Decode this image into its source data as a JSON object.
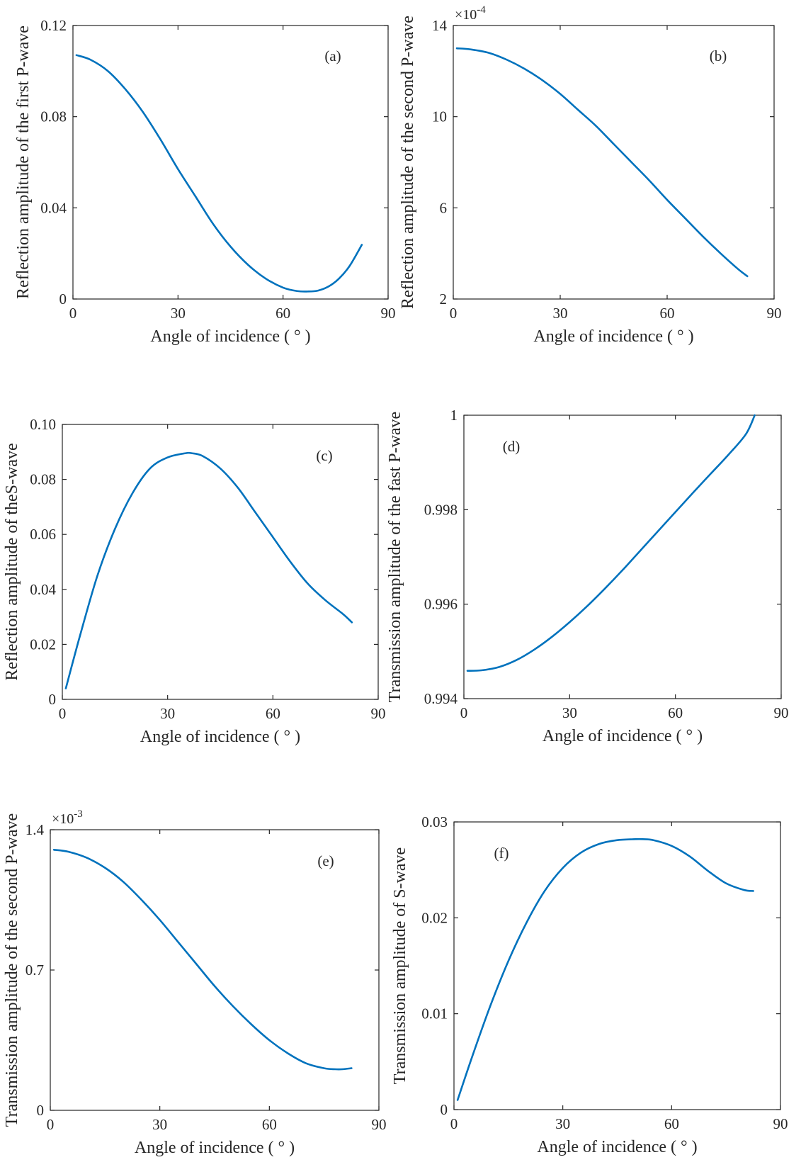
{
  "chart_data": [
    {
      "id": "a",
      "type": "line",
      "panel_label": "(a)",
      "xlabel": "Angle of incidence ( ° )",
      "ylabel": "Reflection amplitude of the first P-wave",
      "xlim": [
        0,
        90
      ],
      "ylim": [
        0,
        0.12
      ],
      "xticks": [
        0,
        30,
        60,
        90
      ],
      "xtick_labels": [
        "0",
        "30",
        "60",
        "90"
      ],
      "yticks": [
        0,
        0.04,
        0.08,
        0.12
      ],
      "ytick_labels": [
        "0",
        "0.04",
        "0.08",
        "0.12"
      ],
      "exponent_label": "",
      "grid": false,
      "series": [
        {
          "color": "#0072bd",
          "x": [
            1,
            5,
            10,
            15,
            20,
            25,
            30,
            35,
            40,
            45,
            50,
            55,
            60,
            64,
            67,
            70,
            73,
            76,
            79,
            82.5
          ],
          "y": [
            0.107,
            0.105,
            0.1,
            0.092,
            0.082,
            0.07,
            0.057,
            0.045,
            0.033,
            0.023,
            0.015,
            0.009,
            0.005,
            0.0035,
            0.0033,
            0.0037,
            0.0055,
            0.009,
            0.0145,
            0.0238
          ]
        }
      ]
    },
    {
      "id": "b",
      "type": "line",
      "panel_label": "(b)",
      "xlabel": "Angle of incidence ( ° )",
      "ylabel": "Reflection amplitude of the second  P-wave",
      "xlim": [
        0,
        90
      ],
      "ylim": [
        2,
        14
      ],
      "xticks": [
        0,
        30,
        60,
        90
      ],
      "xtick_labels": [
        "0",
        "30",
        "60",
        "90"
      ],
      "yticks": [
        2,
        6,
        10,
        14
      ],
      "ytick_labels": [
        "2",
        "6",
        "10",
        "14"
      ],
      "exponent_label": "×10",
      "exponent_power": "-4",
      "grid": false,
      "series": [
        {
          "color": "#0072bd",
          "x": [
            1,
            5,
            10,
            15,
            20,
            25,
            30,
            35,
            40,
            45,
            50,
            55,
            60,
            65,
            70,
            75,
            80,
            82.5
          ],
          "y": [
            13.0,
            12.95,
            12.8,
            12.5,
            12.1,
            11.6,
            11.0,
            10.3,
            9.6,
            8.8,
            8.0,
            7.2,
            6.35,
            5.55,
            4.75,
            4.0,
            3.3,
            3.0
          ]
        }
      ]
    },
    {
      "id": "c",
      "type": "line",
      "panel_label": "(c)",
      "xlabel": "Angle of incidence ( ° )",
      "ylabel": "Reflection amplitude of theS-wave",
      "xlim": [
        0,
        90
      ],
      "ylim": [
        0,
        0.1
      ],
      "xticks": [
        0,
        30,
        60,
        90
      ],
      "xtick_labels": [
        "0",
        "30",
        "60",
        "90"
      ],
      "yticks": [
        0,
        0.02,
        0.04,
        0.06,
        0.08,
        0.1
      ],
      "ytick_labels": [
        "0",
        "0.02",
        "0.04",
        "0.06",
        "0.08",
        "0.10"
      ],
      "exponent_label": "",
      "grid": false,
      "series": [
        {
          "color": "#0072bd",
          "x": [
            1,
            5,
            10,
            15,
            20,
            25,
            30,
            35,
            37,
            40,
            45,
            50,
            55,
            60,
            65,
            70,
            75,
            80,
            82.5
          ],
          "y": [
            0.004,
            0.023,
            0.045,
            0.062,
            0.075,
            0.084,
            0.088,
            0.0895,
            0.0895,
            0.0885,
            0.084,
            0.077,
            0.068,
            0.059,
            0.05,
            0.042,
            0.036,
            0.031,
            0.028
          ]
        }
      ]
    },
    {
      "id": "d",
      "type": "line",
      "panel_label": "(d)",
      "xlabel": "Angle of incidence ( ° )",
      "ylabel": "Transmission amplitude of the fast  P-wave",
      "xlim": [
        0,
        90
      ],
      "ylim": [
        0.994,
        1.0
      ],
      "xticks": [
        0,
        30,
        60,
        90
      ],
      "xtick_labels": [
        "0",
        "30",
        "60",
        "90"
      ],
      "yticks": [
        0.994,
        0.996,
        0.998,
        1.0
      ],
      "ytick_labels": [
        "0.994",
        "0.996",
        "0.998",
        "1"
      ],
      "exponent_label": "",
      "grid": false,
      "series": [
        {
          "color": "#0072bd",
          "x": [
            1,
            5,
            10,
            15,
            20,
            25,
            30,
            35,
            40,
            45,
            50,
            55,
            60,
            65,
            70,
            75,
            80,
            82.5
          ],
          "y": [
            0.99459,
            0.9946,
            0.99467,
            0.99482,
            0.99504,
            0.99531,
            0.99562,
            0.99596,
            0.99633,
            0.99672,
            0.99713,
            0.99754,
            0.99795,
            0.99836,
            0.99876,
            0.99916,
            0.9996,
            1.0
          ]
        }
      ]
    },
    {
      "id": "e",
      "type": "line",
      "panel_label": "(e)",
      "xlabel": "Angle of incidence ( ° )",
      "ylabel": "Transmission amplitude of the second  P-wave",
      "xlim": [
        0,
        90
      ],
      "ylim": [
        0,
        1.4
      ],
      "xticks": [
        0,
        30,
        60,
        90
      ],
      "xtick_labels": [
        "0",
        "30",
        "60",
        "90"
      ],
      "yticks": [
        0,
        0.7,
        1.4
      ],
      "ytick_labels": [
        "0",
        "0.7",
        "1.4"
      ],
      "exponent_label": "×10",
      "exponent_power": "-3",
      "grid": false,
      "series": [
        {
          "color": "#0072bd",
          "x": [
            1,
            5,
            10,
            15,
            20,
            25,
            30,
            35,
            40,
            45,
            50,
            55,
            60,
            65,
            70,
            75,
            78,
            80,
            82.5
          ],
          "y": [
            1.3,
            1.29,
            1.26,
            1.21,
            1.14,
            1.05,
            0.95,
            0.84,
            0.73,
            0.62,
            0.52,
            0.43,
            0.35,
            0.285,
            0.235,
            0.21,
            0.205,
            0.205,
            0.21
          ]
        }
      ]
    },
    {
      "id": "f",
      "type": "line",
      "panel_label": "(f)",
      "xlabel": "Angle of incidence ( ° )",
      "ylabel": "Transmission amplitude of S-wave",
      "xlim": [
        0,
        90
      ],
      "ylim": [
        0,
        0.03
      ],
      "xticks": [
        0,
        30,
        60,
        90
      ],
      "xtick_labels": [
        "0",
        "30",
        "60",
        "90"
      ],
      "yticks": [
        0,
        0.01,
        0.02,
        0.03
      ],
      "ytick_labels": [
        "0",
        "0.01",
        "0.02",
        "0.03"
      ],
      "exponent_label": "",
      "grid": false,
      "series": [
        {
          "color": "#0072bd",
          "x": [
            1,
            5,
            10,
            15,
            20,
            25,
            30,
            35,
            40,
            45,
            50,
            52,
            55,
            60,
            65,
            70,
            75,
            80,
            82.5
          ],
          "y": [
            0.001,
            0.0055,
            0.0108,
            0.0155,
            0.0195,
            0.0228,
            0.0252,
            0.0268,
            0.0277,
            0.0281,
            0.0282,
            0.0282,
            0.0281,
            0.0275,
            0.0264,
            0.0249,
            0.0236,
            0.0229,
            0.0228
          ]
        }
      ]
    }
  ]
}
